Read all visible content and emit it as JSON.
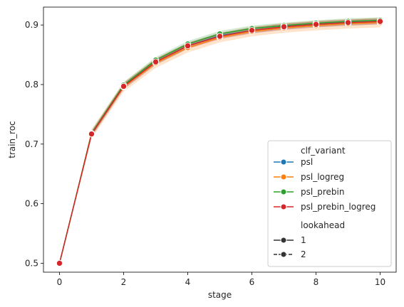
{
  "chart_data": {
    "type": "line",
    "xlabel": "stage",
    "ylabel": "train_roc",
    "xlim": [
      -0.5,
      10.5
    ],
    "ylim": [
      0.485,
      0.93
    ],
    "xticks": [
      0,
      2,
      4,
      6,
      8,
      10
    ],
    "yticks": [
      0.5,
      0.6,
      0.7,
      0.8,
      0.9
    ],
    "ytick_labels": [
      "0.5",
      "0.6",
      "0.7",
      "0.8",
      "0.9"
    ],
    "grid": false,
    "legend_position": "lower-right",
    "x": [
      0,
      1,
      2,
      3,
      4,
      5,
      6,
      7,
      8,
      9,
      10
    ],
    "series": [
      {
        "name": "psl",
        "color": "#1f77b4",
        "values": [
          0.5,
          0.717,
          0.797,
          0.838,
          0.865,
          0.882,
          0.891,
          0.897,
          0.901,
          0.904,
          0.906
        ],
        "band": 0.005
      },
      {
        "name": "psl_logreg",
        "color": "#ff7f0e",
        "values": [
          0.5,
          0.717,
          0.796,
          0.836,
          0.862,
          0.879,
          0.889,
          0.895,
          0.899,
          0.902,
          0.904
        ],
        "band": 0.008
      },
      {
        "name": "psl_prebin",
        "color": "#2ca02c",
        "values": [
          0.5,
          0.718,
          0.799,
          0.841,
          0.868,
          0.885,
          0.894,
          0.899,
          0.903,
          0.906,
          0.908
        ],
        "band": 0.005
      },
      {
        "name": "psl_prebin_logreg",
        "color": "#d62728",
        "values": [
          0.5,
          0.717,
          0.797,
          0.838,
          0.865,
          0.881,
          0.891,
          0.897,
          0.901,
          0.904,
          0.906
        ],
        "band": 0.005
      }
    ],
    "legend": {
      "hue_title": "clf_variant",
      "hue_entries": [
        "psl",
        "psl_logreg",
        "psl_prebin",
        "psl_prebin_logreg"
      ],
      "style_title": "lookahead",
      "style_entries": [
        "1",
        "2"
      ]
    }
  }
}
